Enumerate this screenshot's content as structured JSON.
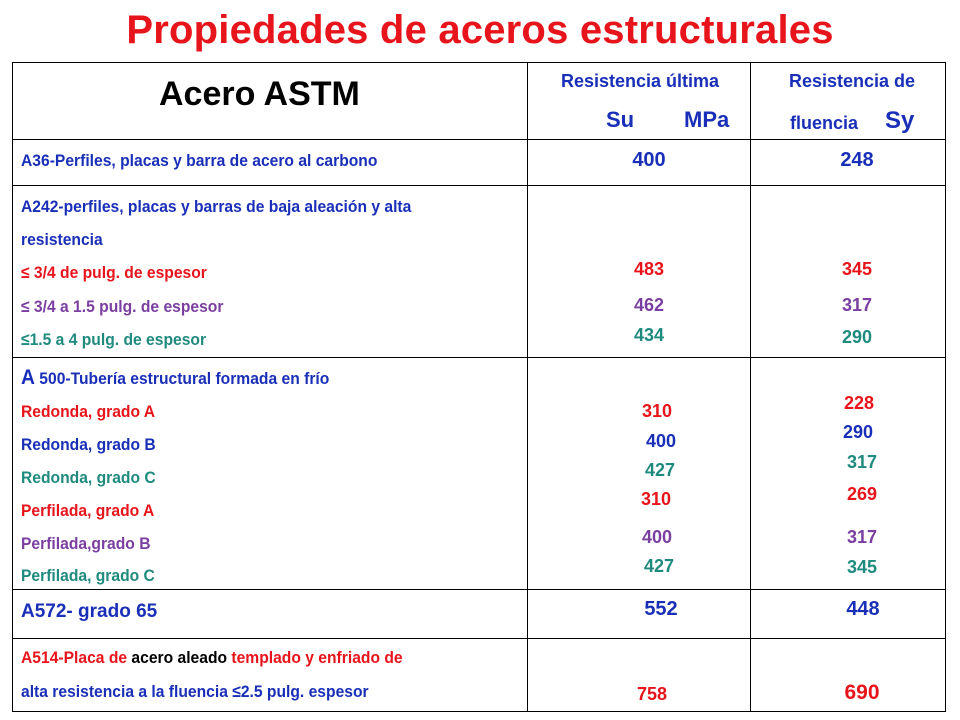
{
  "title": "Propiedades de aceros estructurales",
  "colors": {
    "red": "#e8141b",
    "blue": "#1a2fb8",
    "teal": "#1f8a7e",
    "purple": "#7a3fa0",
    "black": "#000000"
  },
  "header": {
    "col1": "Acero ASTM",
    "col2_line1": "Resistencia última",
    "col2_su": "Su",
    "col2_unit": "MPa",
    "col3_line1": "Resistencia de",
    "col3_line2": "fluencia",
    "col3_sy": "Sy"
  },
  "rows": {
    "a36": {
      "label": "A36-Perfiles, placas y barra de acero al carbono",
      "su": "400",
      "sy": "248"
    },
    "a242": {
      "label_line1": "A242-perfiles, placas y barras de baja aleación y alta",
      "label_line2": "resistencia",
      "items": [
        {
          "label": "≤ 3/4  de pulg. de espesor",
          "su": "483",
          "sy": "345"
        },
        {
          "label": "≤ 3/4   a 1.5 pulg. de espesor",
          "su": "462",
          "sy": "317"
        },
        {
          "label": "≤1.5 a 4 pulg. de espesor",
          "su": "434",
          "sy": "290"
        }
      ]
    },
    "a500": {
      "label_prefix": "A",
      "label_rest": " 500-Tubería estructural formada en frío",
      "items": [
        {
          "label": "Redonda, grado A",
          "su": "310",
          "sy": "228"
        },
        {
          "label": "Redonda, grado B",
          "su": "400",
          "sy": "290"
        },
        {
          "label": "Redonda, grado C",
          "su": "427",
          "sy": "317"
        },
        {
          "label": "Perfilada, grado A",
          "su": "310",
          "sy": "269"
        },
        {
          "label": "Perfilada,grado B",
          "su": "400",
          "sy": "317"
        },
        {
          "label": "Perfilada, grado C",
          "su": "427",
          "sy": "345"
        }
      ]
    },
    "a572": {
      "label": "A572- grado 65",
      "su": "552",
      "sy": "448"
    },
    "a514": {
      "label_part1": "A514-Placa de",
      "label_part2": " acero aleado",
      "label_part3": " templado y enfriado de",
      "label_line2": "alta resistencia a la fluencia ≤2.5 pulg. espesor",
      "su": "758",
      "sy": "690"
    }
  }
}
